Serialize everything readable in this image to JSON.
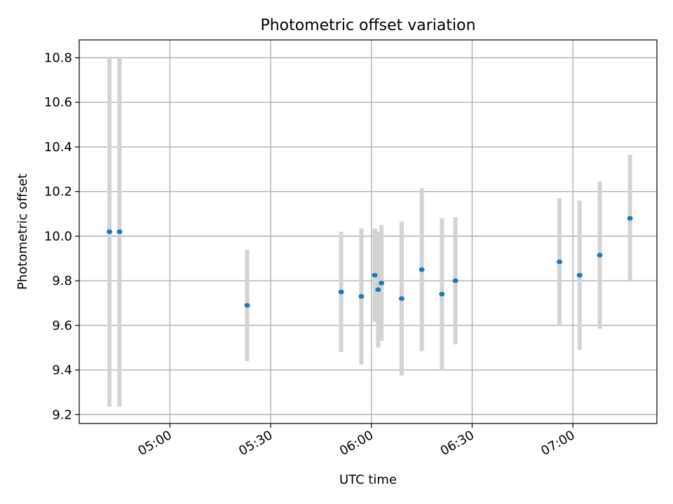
{
  "chart_data": {
    "type": "scatter",
    "title": "Photometric offset variation",
    "xlabel": "UTC time",
    "ylabel": "Photometric offset",
    "grid": true,
    "x_ticks": [
      "05:00",
      "05:30",
      "06:00",
      "06:30",
      "07:00"
    ],
    "y_ticks": [
      "9.2",
      "9.4",
      "9.6",
      "9.8",
      "10.0",
      "10.2",
      "10.4",
      "10.6",
      "10.8"
    ],
    "xlim": [
      "04:33",
      "07:25"
    ],
    "ylim": [
      9.16,
      10.88
    ],
    "colors": {
      "points": "#1f77b4",
      "errorbars": "#d3d3d3",
      "grid": "#b0b0b0"
    },
    "points": [
      {
        "x": "04:42",
        "y": 10.02,
        "err": 0.785
      },
      {
        "x": "04:45",
        "y": 10.02,
        "err": 0.785
      },
      {
        "x": "05:23",
        "y": 9.69,
        "err": 0.25
      },
      {
        "x": "05:51",
        "y": 9.75,
        "err": 0.27
      },
      {
        "x": "05:57",
        "y": 9.73,
        "err": 0.305
      },
      {
        "x": "06:01",
        "y": 9.825,
        "err": 0.21
      },
      {
        "x": "06:02",
        "y": 9.76,
        "err": 0.26
      },
      {
        "x": "06:03",
        "y": 9.79,
        "err": 0.26
      },
      {
        "x": "06:09",
        "y": 9.72,
        "err": 0.345
      },
      {
        "x": "06:15",
        "y": 9.85,
        "err": 0.365
      },
      {
        "x": "06:21",
        "y": 9.74,
        "err": 0.34
      },
      {
        "x": "06:25",
        "y": 9.8,
        "err": 0.285
      },
      {
        "x": "06:56",
        "y": 9.885,
        "err": 0.285
      },
      {
        "x": "07:02",
        "y": 9.825,
        "err": 0.335
      },
      {
        "x": "07:08",
        "y": 9.915,
        "err": 0.33
      },
      {
        "x": "07:17",
        "y": 10.08,
        "err": 0.285
      }
    ]
  }
}
